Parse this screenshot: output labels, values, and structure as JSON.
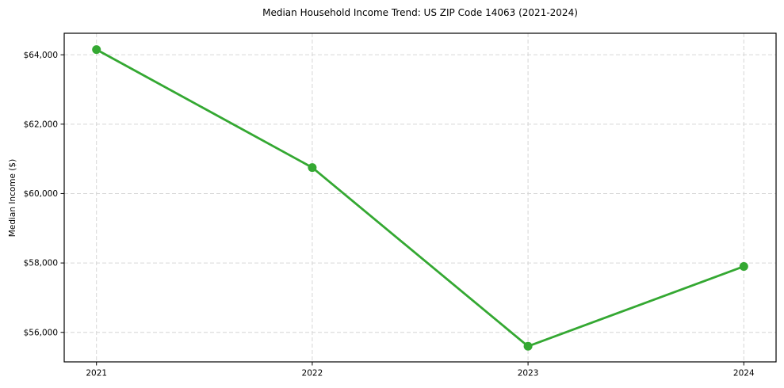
{
  "chart_data": {
    "type": "line",
    "title": "Median Household Income Trend: US ZIP Code 14063 (2021-2024)",
    "xlabel": "",
    "ylabel": "Median Income ($)",
    "x": [
      "2021",
      "2022",
      "2023",
      "2024"
    ],
    "series": [
      {
        "name": "Median Household Income",
        "values": [
          64150,
          60750,
          55600,
          57900
        ]
      }
    ],
    "ylim": [
      55150,
      64620
    ],
    "yticks": {
      "values": [
        56000,
        58000,
        60000,
        62000,
        64000
      ],
      "labels": [
        "$56,000",
        "$58,000",
        "$60,000",
        "$62,000",
        "$64,000"
      ]
    },
    "grid": true,
    "grid_style": "dashed",
    "legend_position": "none",
    "colors": {
      "line": "#34a832",
      "marker": "#34a832",
      "grid": "#d6d6d6",
      "axis": "#000000",
      "text": "#000000",
      "background": "#ffffff"
    }
  }
}
